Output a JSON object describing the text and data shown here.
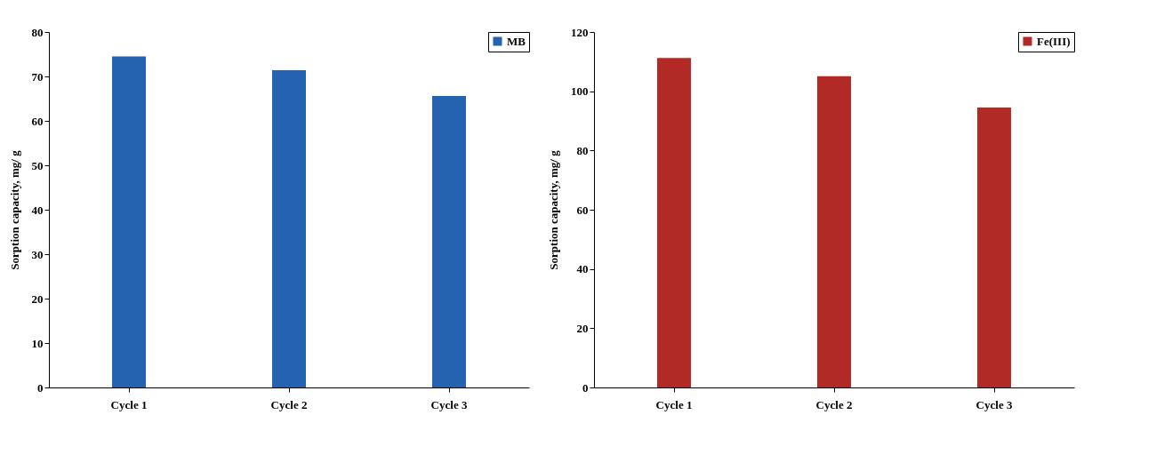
{
  "chart_data": [
    {
      "type": "bar",
      "ylabel": "Sorption capacity, mg/ g",
      "categories": [
        "Cycle 1",
        "Cycle 2",
        "Cycle 3"
      ],
      "series": [
        {
          "name": "MB",
          "color": "#2563b0",
          "values": [
            74.5,
            71.4,
            65.6
          ]
        }
      ],
      "ylim": [
        0,
        80
      ],
      "yticks": [
        0,
        10,
        20,
        30,
        40,
        50,
        60,
        70,
        80
      ],
      "grid": false,
      "legend": "top right"
    },
    {
      "type": "bar",
      "ylabel": "Sorption capacity, mg/ g",
      "categories": [
        "Cycle 1",
        "Cycle 2",
        "Cycle 3"
      ],
      "series": [
        {
          "name": "Fe(III)",
          "color": "#b22a26",
          "values": [
            111.2,
            105.1,
            94.5
          ]
        }
      ],
      "ylim": [
        0,
        120
      ],
      "yticks": [
        0,
        20,
        40,
        60,
        80,
        100,
        120
      ],
      "grid": false,
      "legend": "top right"
    }
  ]
}
